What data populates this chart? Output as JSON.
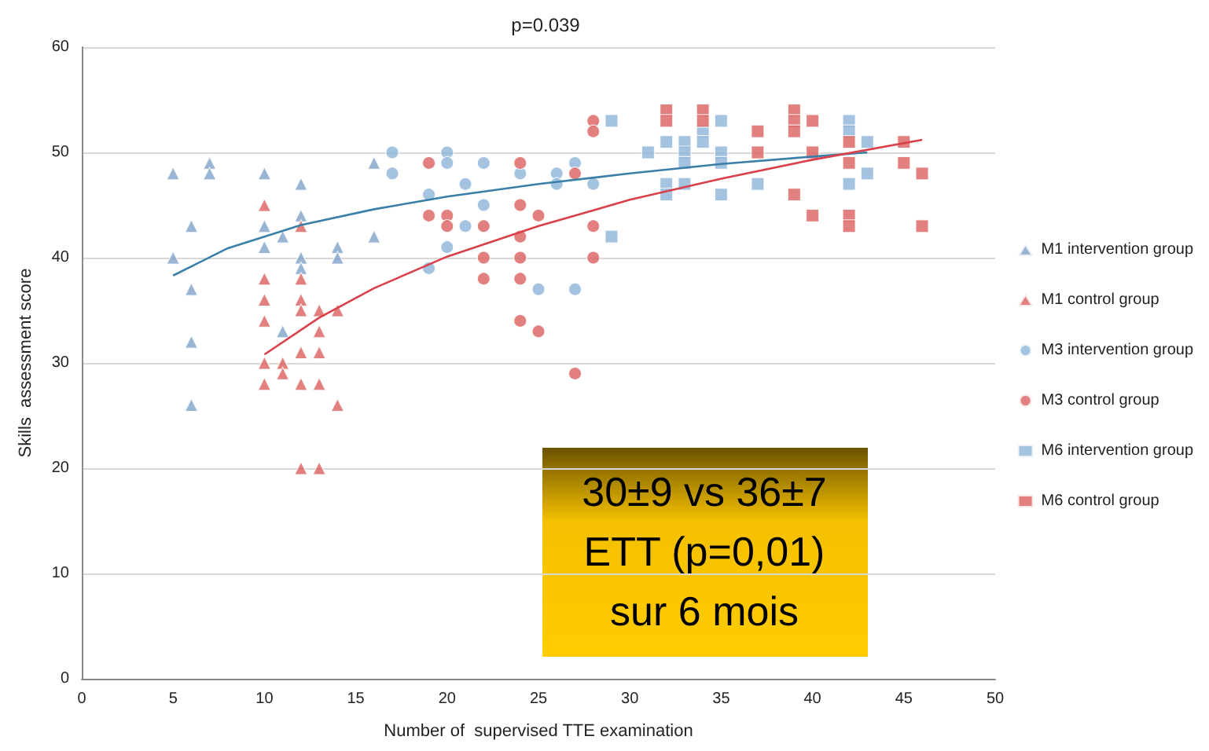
{
  "chart_data": {
    "type": "scatter",
    "title": "p=0.039",
    "xlabel": "Number of  supervised TTE examination",
    "ylabel": "Skills  assessment score",
    "xlim": [
      0,
      50
    ],
    "xticks": [
      0,
      5,
      10,
      15,
      20,
      25,
      30,
      35,
      40,
      45,
      50
    ],
    "ylim": [
      0,
      60
    ],
    "yticks": [
      0,
      10,
      20,
      30,
      40,
      50,
      60
    ],
    "grid": "y",
    "legend": "right",
    "annotations": [
      "30±9 vs 36±7\nETT (p=0,01)\nsur 6 mois"
    ],
    "series": [
      {
        "name": "M1 intervention group",
        "color": "#7fa3c8",
        "marker": "triangle",
        "x": [
          5,
          5,
          6,
          6,
          6,
          6,
          7,
          7,
          10,
          10,
          10,
          11,
          11,
          12,
          12,
          12,
          12,
          14,
          14,
          16,
          16
        ],
        "values": [
          48,
          40,
          43,
          37,
          32,
          26,
          49,
          48,
          48,
          43,
          41,
          42,
          33,
          47,
          44,
          40,
          39,
          41,
          40,
          49,
          42
        ]
      },
      {
        "name": "M1 control group",
        "color": "#d9605f",
        "marker": "triangle",
        "x": [
          10,
          10,
          10,
          10,
          10,
          10,
          11,
          11,
          12,
          12,
          12,
          12,
          12,
          12,
          12,
          13,
          13,
          13,
          13,
          13,
          14,
          14
        ],
        "values": [
          45,
          38,
          36,
          34,
          30,
          28,
          30,
          29,
          43,
          38,
          36,
          35,
          31,
          28,
          20,
          35,
          33,
          31,
          28,
          20,
          35,
          26
        ]
      },
      {
        "name": "M3 intervention group",
        "color": "#8db4da",
        "marker": "circle",
        "x": [
          17,
          17,
          19,
          19,
          20,
          20,
          20,
          21,
          21,
          22,
          22,
          24,
          25,
          26,
          26,
          27,
          27,
          28
        ],
        "values": [
          50,
          48,
          46,
          39,
          50,
          49,
          41,
          47,
          43,
          49,
          45,
          48,
          37,
          48,
          47,
          49,
          37,
          47
        ]
      },
      {
        "name": "M3 control group",
        "color": "#d9605f",
        "marker": "circle",
        "x": [
          19,
          19,
          20,
          20,
          22,
          22,
          22,
          24,
          24,
          24,
          24,
          24,
          24,
          25,
          25,
          27,
          27,
          28,
          28,
          28,
          28
        ],
        "values": [
          49,
          44,
          44,
          43,
          43,
          40,
          38,
          49,
          45,
          42,
          40,
          38,
          34,
          44,
          33,
          48,
          29,
          53,
          52,
          43,
          40
        ]
      },
      {
        "name": "M6 intervention group",
        "color": "#8db4da",
        "marker": "square",
        "x": [
          29,
          29,
          31,
          32,
          32,
          32,
          33,
          33,
          33,
          33,
          34,
          34,
          35,
          35,
          35,
          35,
          37,
          42,
          42,
          42,
          43,
          43
        ],
        "values": [
          53,
          42,
          50,
          51,
          47,
          46,
          51,
          50,
          49,
          47,
          52,
          51,
          53,
          50,
          49,
          46,
          47,
          53,
          52,
          47,
          51,
          48
        ]
      },
      {
        "name": "M6 control group",
        "color": "#d9605f",
        "marker": "square",
        "x": [
          32,
          32,
          34,
          34,
          37,
          37,
          39,
          39,
          39,
          39,
          40,
          40,
          40,
          42,
          42,
          42,
          42,
          45,
          45,
          46,
          46
        ],
        "values": [
          54,
          53,
          54,
          53,
          52,
          50,
          54,
          53,
          52,
          46,
          53,
          50,
          44,
          51,
          49,
          44,
          43,
          51,
          49,
          48,
          43
        ]
      },
      {
        "type": "line",
        "color": "#3a7fa8",
        "marker": "none",
        "x": [
          5,
          8,
          12,
          16,
          20,
          25,
          30,
          35,
          40,
          43
        ],
        "values": [
          38.3,
          40.9,
          43.1,
          44.6,
          45.8,
          47.0,
          48.0,
          48.9,
          49.6,
          50.0
        ]
      },
      {
        "type": "line",
        "color": "#d9404a",
        "marker": "none",
        "x": [
          10,
          13,
          16,
          20,
          25,
          30,
          35,
          40,
          46
        ],
        "values": [
          30.8,
          34.3,
          37.1,
          40.1,
          43.0,
          45.5,
          47.5,
          49.3,
          51.2
        ]
      }
    ]
  }
}
